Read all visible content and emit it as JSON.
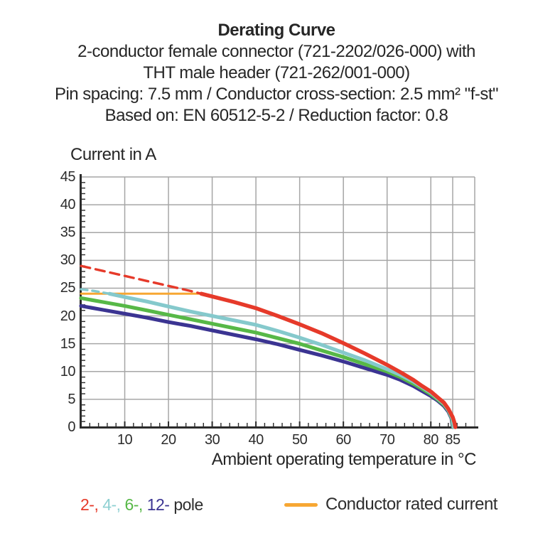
{
  "title": {
    "heading": "Derating Curve",
    "lines": [
      "2-conductor female connector (721-2202/026-000) with",
      "THT male header (721-262/001-000)",
      "Pin spacing: 7.5 mm / Conductor cross-section: 2.5 mm² \"f-st\"",
      "Based on: EN 60512-5-2 / Reduction factor: 0.8"
    ]
  },
  "colors": {
    "grid": "#a6a6a6",
    "axis": "#2b2b2b",
    "text": "#262626",
    "red": "#e63a2a",
    "cyan": "#85c9cc",
    "green": "#57b847",
    "indigo": "#3b3492",
    "orange": "#f7a733"
  },
  "legend": {
    "poles": [
      {
        "label": "2-,",
        "color": "#e63a2a"
      },
      {
        "label": "4-,",
        "color": "#8fd0d2"
      },
      {
        "label": "6-,",
        "color": "#57b847"
      },
      {
        "label": "12-",
        "color": "#3b3492"
      }
    ],
    "poles_suffix": "pole",
    "rated_label": "Conductor rated current",
    "rated_color": "#f7a733"
  },
  "chart_data": {
    "type": "line",
    "title": "Derating Curve",
    "xlabel": "Ambient operating temperature in °C",
    "ylabel": "Current in A",
    "xlim": [
      0,
      90
    ],
    "ylim": [
      0,
      45
    ],
    "xticks": [
      10,
      20,
      30,
      40,
      50,
      60,
      70,
      80,
      85
    ],
    "yticks": [
      0,
      5,
      10,
      15,
      20,
      25,
      30,
      35,
      40,
      45
    ],
    "grid": true,
    "legend_position": "bottom",
    "series": [
      {
        "id": "rated-current",
        "name": "Conductor rated current",
        "color": "#f7a733",
        "style": "solid",
        "width": 3,
        "points": [
          [
            0,
            24
          ],
          [
            27.5,
            24
          ]
        ]
      },
      {
        "id": "2-pole-dashed",
        "name": "2-pole (above rated current, dashed)",
        "color": "#e63a2a",
        "style": "dashed",
        "dash": "13 8",
        "width": 3.4,
        "points": [
          [
            0,
            29
          ],
          [
            5,
            28.1
          ],
          [
            10,
            27.2
          ],
          [
            15,
            26.3
          ],
          [
            20,
            25.4
          ],
          [
            25,
            24.5
          ],
          [
            27.5,
            24
          ]
        ]
      },
      {
        "id": "4-pole-dashed",
        "name": "4-pole (above rated current, dashed)",
        "color": "#85c9cc",
        "style": "dashed",
        "dash": "9 7",
        "width": 3.4,
        "points": [
          [
            0,
            24.8
          ],
          [
            3,
            24.5
          ],
          [
            6.5,
            24
          ]
        ]
      },
      {
        "id": "12-pole",
        "name": "12-pole",
        "color": "#3b3492",
        "style": "solid",
        "width": 5.2,
        "points": [
          [
            0,
            21.8
          ],
          [
            5,
            21.1
          ],
          [
            10,
            20.4
          ],
          [
            15,
            19.7
          ],
          [
            20,
            18.9
          ],
          [
            25,
            18.2
          ],
          [
            30,
            17.4
          ],
          [
            35,
            16.6
          ],
          [
            40,
            15.8
          ],
          [
            45,
            14.9
          ],
          [
            50,
            13.9
          ],
          [
            55,
            12.9
          ],
          [
            60,
            11.8
          ],
          [
            65,
            10.6
          ],
          [
            70,
            9.4
          ],
          [
            73,
            8.5
          ],
          [
            76,
            7.4
          ],
          [
            78,
            6.5
          ],
          [
            80,
            5.6
          ],
          [
            81.5,
            4.8
          ],
          [
            83,
            3.8
          ],
          [
            84,
            2.8
          ],
          [
            84.7,
            1.6
          ],
          [
            85,
            0
          ]
        ]
      },
      {
        "id": "6-pole",
        "name": "6-pole",
        "color": "#57b847",
        "style": "solid",
        "width": 5.2,
        "points": [
          [
            0,
            23.2
          ],
          [
            5,
            22.5
          ],
          [
            10,
            21.8
          ],
          [
            15,
            21.0
          ],
          [
            20,
            20.2
          ],
          [
            25,
            19.4
          ],
          [
            30,
            18.6
          ],
          [
            35,
            17.8
          ],
          [
            40,
            17.0
          ],
          [
            45,
            16.0
          ],
          [
            50,
            15.0
          ],
          [
            55,
            13.8
          ],
          [
            60,
            12.6
          ],
          [
            65,
            11.3
          ],
          [
            70,
            10.0
          ],
          [
            73,
            9.0
          ],
          [
            76,
            7.8
          ],
          [
            78,
            6.9
          ],
          [
            80,
            5.9
          ],
          [
            81.5,
            5.0
          ],
          [
            83,
            4.0
          ],
          [
            84,
            3.0
          ],
          [
            84.8,
            1.6
          ],
          [
            85.1,
            0
          ]
        ]
      },
      {
        "id": "4-pole",
        "name": "4-pole",
        "color": "#85c9cc",
        "style": "solid",
        "width": 5.2,
        "points": [
          [
            6.5,
            24
          ],
          [
            10,
            23.4
          ],
          [
            15,
            22.6
          ],
          [
            20,
            21.7
          ],
          [
            25,
            20.8
          ],
          [
            30,
            20.0
          ],
          [
            35,
            19.2
          ],
          [
            40,
            18.4
          ],
          [
            45,
            17.3
          ],
          [
            50,
            16.1
          ],
          [
            55,
            14.8
          ],
          [
            60,
            13.4
          ],
          [
            65,
            12.0
          ],
          [
            70,
            10.4
          ],
          [
            73,
            9.4
          ],
          [
            76,
            8.2
          ],
          [
            78,
            7.2
          ],
          [
            80,
            6.2
          ],
          [
            81.5,
            5.2
          ],
          [
            83,
            4.2
          ],
          [
            84,
            3.1
          ],
          [
            84.9,
            1.6
          ],
          [
            85.2,
            0
          ]
        ]
      },
      {
        "id": "2-pole",
        "name": "2-pole",
        "color": "#e63a2a",
        "style": "solid",
        "width": 5.5,
        "points": [
          [
            27.5,
            24
          ],
          [
            30,
            23.5
          ],
          [
            35,
            22.5
          ],
          [
            40,
            21.4
          ],
          [
            45,
            20.0
          ],
          [
            50,
            18.5
          ],
          [
            55,
            16.9
          ],
          [
            60,
            15.1
          ],
          [
            65,
            13.2
          ],
          [
            70,
            11.2
          ],
          [
            73,
            9.9
          ],
          [
            76,
            8.5
          ],
          [
            78,
            7.4
          ],
          [
            80,
            6.4
          ],
          [
            81.5,
            5.4
          ],
          [
            83,
            4.4
          ],
          [
            84,
            3.3
          ],
          [
            85,
            1.8
          ],
          [
            85.4,
            0.8
          ],
          [
            85.6,
            0
          ]
        ]
      }
    ]
  }
}
